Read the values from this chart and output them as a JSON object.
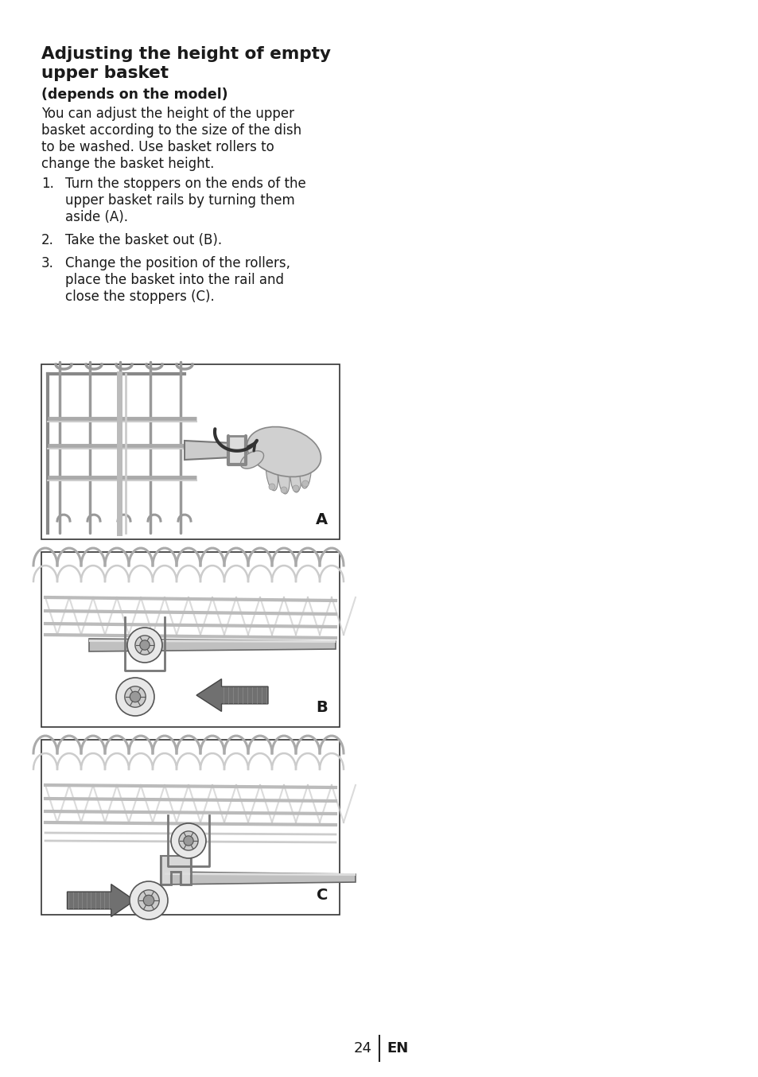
{
  "title_line1": "Adjusting the height of empty",
  "title_line2": "upper basket",
  "subtitle": "(depends on the model)",
  "body_lines": [
    "You can adjust the height of the upper",
    "basket according to the size of the dish",
    "to be washed. Use basket rollers to",
    "change the basket height."
  ],
  "step1_num": "1.",
  "step1_lines": [
    "Turn the stoppers on the ends of the",
    "upper basket rails by turning them",
    "aside (A)."
  ],
  "step2_num": "2.",
  "step2_lines": [
    "Take the basket out (B)."
  ],
  "step3_num": "3.",
  "step3_lines": [
    "Change the position of the rollers,",
    "place the basket into the rail and",
    "close the stoppers (C)."
  ],
  "labels": [
    "A",
    "B",
    "C"
  ],
  "page_number": "24",
  "page_suffix": "EN",
  "bg_color": "#ffffff",
  "text_color": "#1a1a1a",
  "wire_color": "#888888",
  "dark_color": "#444444",
  "figure_width": 9.54,
  "figure_height": 13.54
}
